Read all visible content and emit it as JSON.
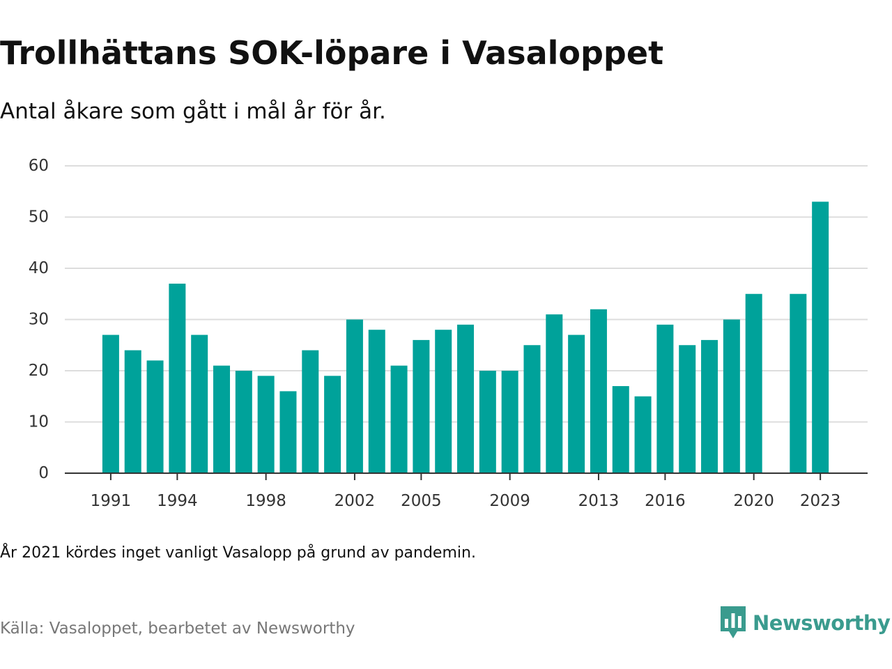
{
  "title": "Trollhättans SOK-löpare i Vasaloppet",
  "subtitle": "Antal åkare som gått i mål år för år.",
  "note": "År 2021 kördes inget vanligt Vasalopp på grund av pandemin.",
  "source": "Källa: Vasaloppet, bearbetet av Newsworthy",
  "brand": {
    "name": "Newsworthy",
    "icon": "bar-chart-speech-bubble-icon",
    "color": "#3a9b8e"
  },
  "colors": {
    "bar": "#00a29a",
    "grid": "#dddddd",
    "axis": "#333333",
    "tick_text": "#333333"
  },
  "chart_data": {
    "type": "bar",
    "title": "Trollhättans SOK-löpare i Vasaloppet",
    "subtitle": "Antal åkare som gått i mål år för år.",
    "xlabel": "",
    "ylabel": "",
    "ylim": [
      0,
      60
    ],
    "yticks": [
      0,
      10,
      20,
      30,
      40,
      50,
      60
    ],
    "grid": true,
    "categories": [
      1991,
      1992,
      1993,
      1994,
      1995,
      1996,
      1997,
      1998,
      1999,
      2000,
      2001,
      2002,
      2003,
      2004,
      2005,
      2006,
      2007,
      2008,
      2009,
      2010,
      2011,
      2012,
      2013,
      2014,
      2015,
      2016,
      2017,
      2018,
      2019,
      2020,
      2021,
      2022,
      2023
    ],
    "values": [
      27,
      24,
      22,
      37,
      27,
      21,
      20,
      19,
      16,
      24,
      19,
      30,
      28,
      21,
      26,
      28,
      29,
      20,
      20,
      25,
      31,
      27,
      32,
      17,
      15,
      29,
      25,
      26,
      30,
      35,
      null,
      35,
      53
    ],
    "xtick_labels": [
      1991,
      1994,
      1998,
      2002,
      2005,
      2009,
      2013,
      2016,
      2020,
      2023
    ]
  }
}
